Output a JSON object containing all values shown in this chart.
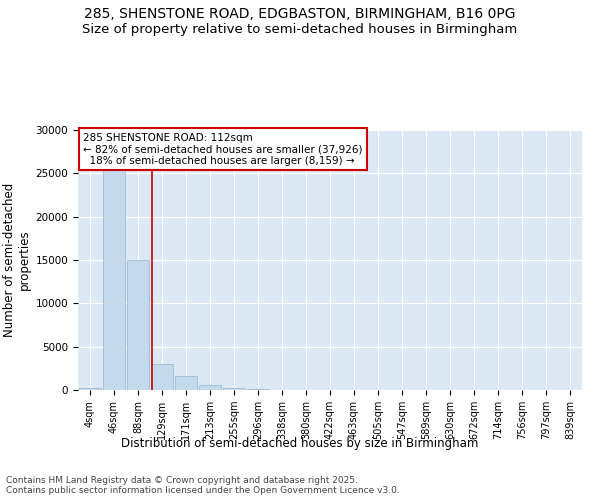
{
  "title_line1": "285, SHENSTONE ROAD, EDGBASTON, BIRMINGHAM, B16 0PG",
  "title_line2": "Size of property relative to semi-detached houses in Birmingham",
  "xlabel": "Distribution of semi-detached houses by size in Birmingham",
  "ylabel": "Number of semi-detached\nproperties",
  "footnote": "Contains HM Land Registry data © Crown copyright and database right 2025.\nContains public sector information licensed under the Open Government Licence v3.0.",
  "bar_categories": [
    "4sqm",
    "46sqm",
    "88sqm",
    "129sqm",
    "171sqm",
    "213sqm",
    "255sqm",
    "296sqm",
    "338sqm",
    "380sqm",
    "422sqm",
    "463sqm",
    "505sqm",
    "547sqm",
    "589sqm",
    "630sqm",
    "672sqm",
    "714sqm",
    "756sqm",
    "797sqm",
    "839sqm"
  ],
  "bar_values": [
    200,
    26000,
    15000,
    3000,
    1600,
    600,
    200,
    100,
    50,
    20,
    10,
    5,
    0,
    0,
    0,
    0,
    0,
    0,
    0,
    0,
    0
  ],
  "bar_color": "#c5d9ed",
  "bar_edge_color": "#93b5d0",
  "background_color": "#dce9f5",
  "grid_color": "#ffffff",
  "property_size_sqm": 112,
  "property_size_label": "285 SHENSTONE ROAD: 112sqm",
  "pct_smaller": 82,
  "count_smaller": 37926,
  "pct_larger": 18,
  "count_larger": 8159,
  "vline_color": "#cc0000",
  "annotation_box_color": "#cc0000",
  "ylim": [
    0,
    30000
  ],
  "yticks": [
    0,
    5000,
    10000,
    15000,
    20000,
    25000,
    30000
  ],
  "title_fontsize": 10,
  "axis_label_fontsize": 8.5,
  "tick_fontsize": 7.5,
  "annotation_fontsize": 7.5,
  "footnote_fontsize": 6.5
}
